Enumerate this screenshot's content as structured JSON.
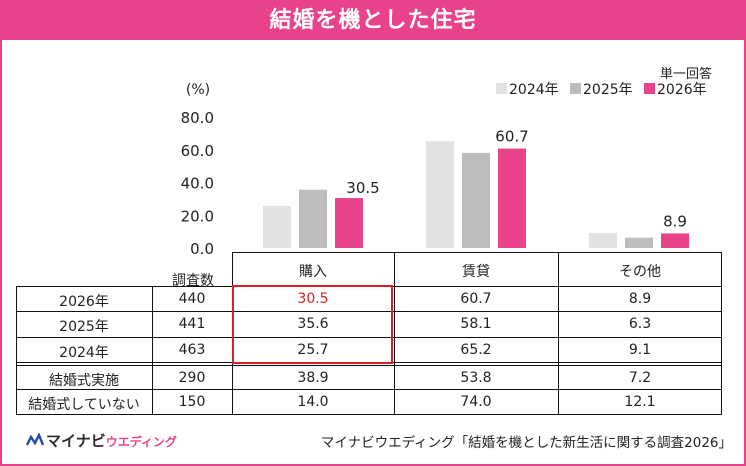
{
  "title": "結婚を機とした住宅",
  "colors": {
    "s2024": "#e2e2e2",
    "s2025": "#bdbdbd",
    "s2026": "#e8428a",
    "accent": "#e8428a",
    "highlight": "#d81f26"
  },
  "chart_data": {
    "type": "bar",
    "unit_label": "(%)",
    "note": "単一回答",
    "categories": [
      "購入",
      "賃貸",
      "その他"
    ],
    "series": [
      {
        "name": "2024年",
        "values": [
          25.7,
          65.2,
          9.1
        ]
      },
      {
        "name": "2025年",
        "values": [
          35.6,
          58.1,
          6.3
        ]
      },
      {
        "name": "2026年",
        "values": [
          30.5,
          60.7,
          8.9
        ]
      }
    ],
    "yticks": [
      "80.0",
      "60.0",
      "40.0",
      "20.0",
      "0.0"
    ],
    "ylim": [
      0,
      80
    ],
    "data_labels": {
      "series": "2026年",
      "values": [
        "30.5",
        "60.7",
        "8.9"
      ]
    }
  },
  "table": {
    "count_header": "調査数",
    "rows": [
      {
        "label": "2026年",
        "n": "440",
        "values": [
          "30.5",
          "60.7",
          "8.9"
        ]
      },
      {
        "label": "2025年",
        "n": "441",
        "values": [
          "35.6",
          "58.1",
          "6.3"
        ]
      },
      {
        "label": "2024年",
        "n": "463",
        "values": [
          "25.7",
          "65.2",
          "9.1"
        ]
      },
      {
        "label": "結婚式実施",
        "n": "290",
        "values": [
          "38.9",
          "53.8",
          "7.2"
        ]
      },
      {
        "label": "結婚式していない",
        "n": "150",
        "values": [
          "14.0",
          "74.0",
          "12.1"
        ]
      }
    ]
  },
  "footer": {
    "logo_main": "マイナビ",
    "logo_sub": "ウエディング",
    "source": "マイナビウエディング「結婚を機とした新生活に関する調査2026」"
  }
}
